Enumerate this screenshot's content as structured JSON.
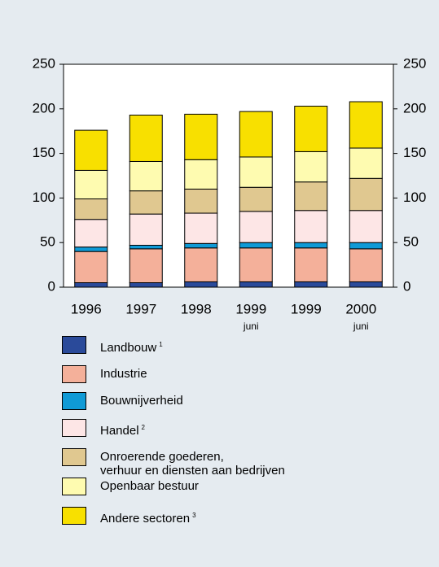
{
  "chart_data": {
    "type": "stacked_bar",
    "categories": [
      "1996",
      "1997",
      "1998",
      "1999",
      "1999",
      "2000"
    ],
    "sublabels": [
      null,
      null,
      null,
      "juni",
      null,
      "juni"
    ],
    "series": [
      {
        "name": "Landbouw",
        "footnote": "1",
        "color": "#2a4a9a",
        "values": [
          5,
          5,
          6,
          6,
          6,
          6
        ]
      },
      {
        "name": "Industrie",
        "color": "#f4b09a",
        "values": [
          35,
          38,
          38,
          38,
          38,
          37
        ]
      },
      {
        "name": "Bouwnijverheid",
        "color": "#0f9ad6",
        "values": [
          5,
          4,
          5,
          6,
          6,
          7
        ]
      },
      {
        "name": "Handel",
        "footnote": "2",
        "color": "#fde6e6",
        "values": [
          31,
          35,
          34,
          35,
          36,
          36
        ]
      },
      {
        "name": "Onroerende goederen,\nverhuur en diensten aan bedrijven",
        "color": "#e0c890",
        "values": [
          23,
          26,
          27,
          27,
          32,
          36
        ]
      },
      {
        "name": "Openbaar bestuur",
        "color": "#fefbb0",
        "values": [
          32,
          33,
          33,
          34,
          34,
          34
        ]
      },
      {
        "name": "Andere sectoren",
        "footnote": "3",
        "color": "#f8e000",
        "values": [
          45,
          52,
          51,
          51,
          51,
          52
        ]
      }
    ],
    "ylim": [
      0,
      250
    ],
    "yticks": [
      0,
      50,
      100,
      150,
      200,
      250
    ]
  }
}
